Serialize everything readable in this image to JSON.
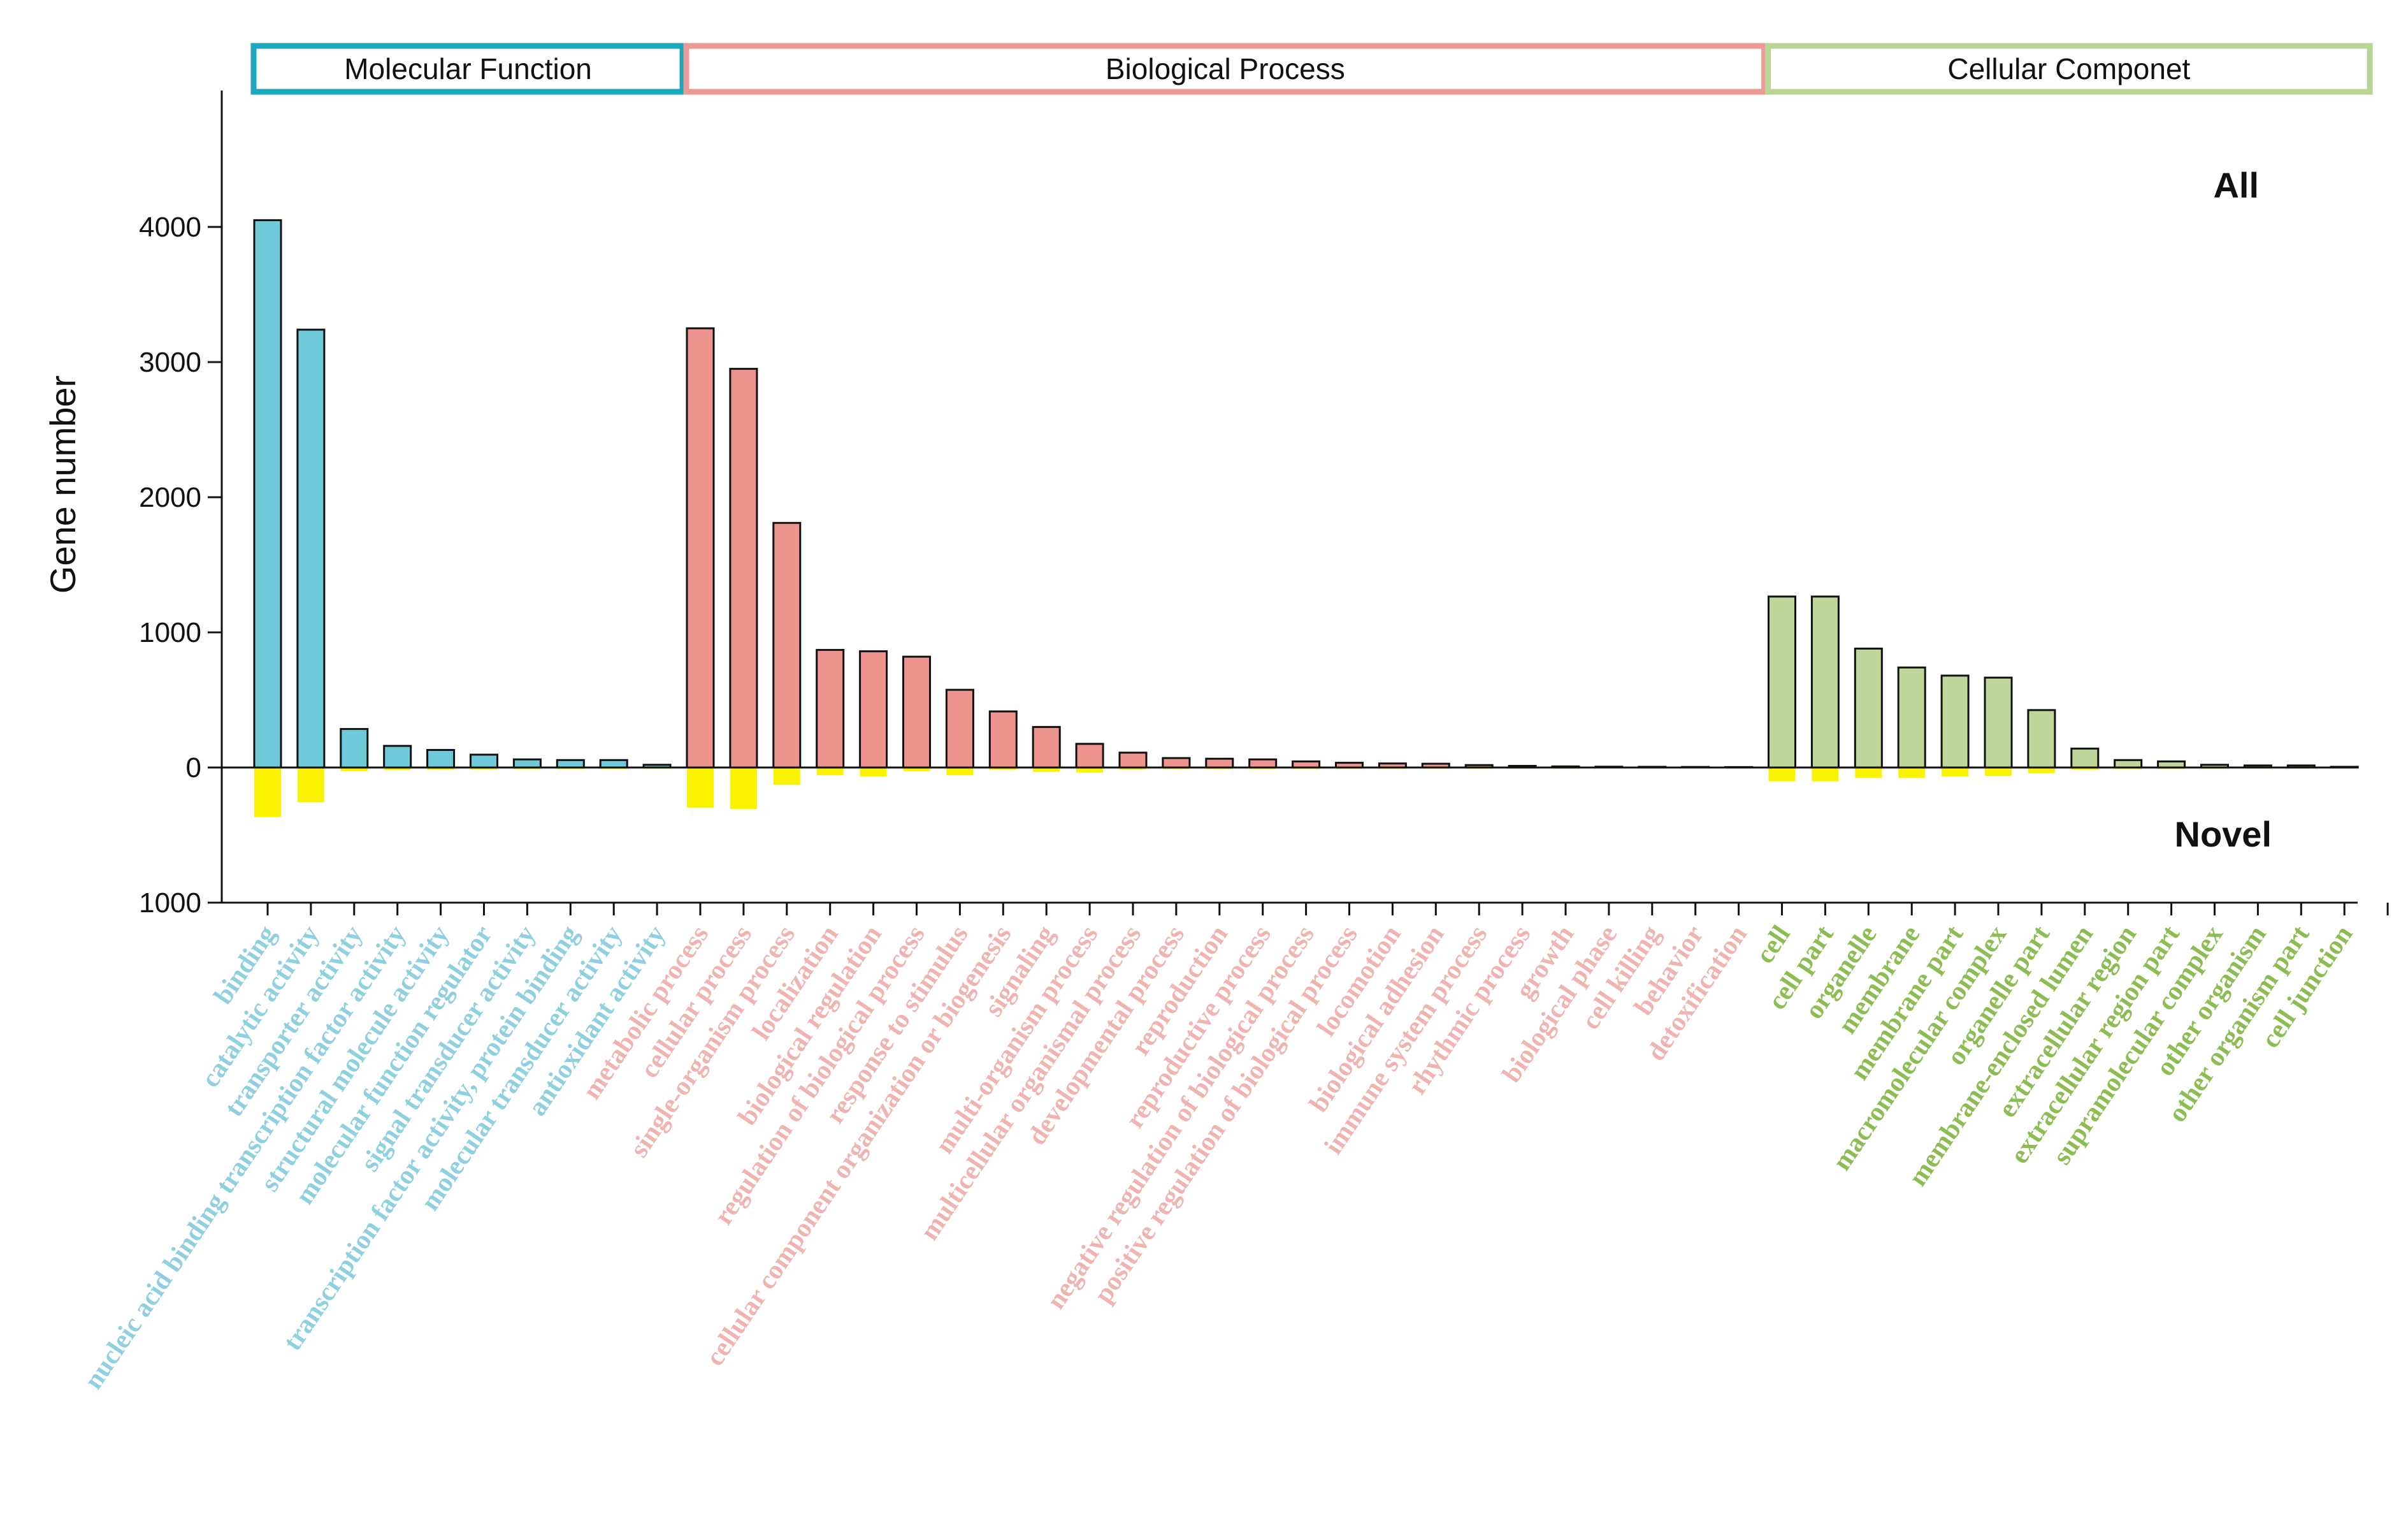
{
  "chart_data": {
    "type": "bar",
    "ylabel": "Gene number",
    "ylim_top": [
      0,
      5000
    ],
    "ylim_bottom": [
      0,
      1000
    ],
    "yticks_top": [
      "0",
      "1000",
      "2000",
      "3000",
      "4000"
    ],
    "yticks_bottom": [
      "1000"
    ],
    "label_all": "All",
    "label_novel": "Novel",
    "colors": {
      "mf": "#6ecad9",
      "bp": "#ee948f",
      "cc": "#bfd69b",
      "novel": "#fbf200",
      "mf_label": "#8fd0e0",
      "bp_label": "#f0b4b0",
      "cc_label": "#8cbd52",
      "mf_box": "#1ba8be",
      "bp_box": "#ec9a96",
      "cc_box": "#b9d596"
    },
    "groups": [
      {
        "name": "Molecular Function",
        "key": "mf"
      },
      {
        "name": "Biological Process",
        "key": "bp"
      },
      {
        "name": "Cellular Componet",
        "key": "cc"
      }
    ],
    "categories": [
      {
        "label": "binding",
        "group": "mf",
        "all": 4050,
        "novel": 360
      },
      {
        "label": "catalytic activity",
        "group": "mf",
        "all": 3240,
        "novel": 250
      },
      {
        "label": "transporter activity",
        "group": "mf",
        "all": 285,
        "novel": 20
      },
      {
        "label": "nucleic acid binding transcription factor activity",
        "group": "mf",
        "all": 160,
        "novel": 12
      },
      {
        "label": "structural molecule activity",
        "group": "mf",
        "all": 130,
        "novel": 10
      },
      {
        "label": "molecular function regulator",
        "group": "mf",
        "all": 95,
        "novel": 8
      },
      {
        "label": "signal transducer activity",
        "group": "mf",
        "all": 60,
        "novel": 6
      },
      {
        "label": "transcription factor activity, protein binding",
        "group": "mf",
        "all": 55,
        "novel": 5
      },
      {
        "label": "molecular transducer activity",
        "group": "mf",
        "all": 55,
        "novel": 5
      },
      {
        "label": "antioxidant activity",
        "group": "mf",
        "all": 20,
        "novel": 2
      },
      {
        "label": "metabolic process",
        "group": "bp",
        "all": 3250,
        "novel": 290
      },
      {
        "label": "cellular process",
        "group": "bp",
        "all": 2950,
        "novel": 300
      },
      {
        "label": "single-organism process",
        "group": "bp",
        "all": 1810,
        "novel": 120
      },
      {
        "label": "localization",
        "group": "bp",
        "all": 870,
        "novel": 50
      },
      {
        "label": "biological regulation",
        "group": "bp",
        "all": 860,
        "novel": 60
      },
      {
        "label": "regulation of biological process",
        "group": "bp",
        "all": 820,
        "novel": 20
      },
      {
        "label": "response to stimulus",
        "group": "bp",
        "all": 575,
        "novel": 50
      },
      {
        "label": "cellular component organization or biogenesis",
        "group": "bp",
        "all": 415,
        "novel": 10
      },
      {
        "label": "signaling",
        "group": "bp",
        "all": 300,
        "novel": 25
      },
      {
        "label": "multi-organism process",
        "group": "bp",
        "all": 175,
        "novel": 30
      },
      {
        "label": "multicellular organismal process",
        "group": "bp",
        "all": 110,
        "novel": 8
      },
      {
        "label": "developmental process",
        "group": "bp",
        "all": 70,
        "novel": 5
      },
      {
        "label": "reproduction",
        "group": "bp",
        "all": 65,
        "novel": 5
      },
      {
        "label": "reproductive process",
        "group": "bp",
        "all": 60,
        "novel": 5
      },
      {
        "label": "negative regulation of biological process",
        "group": "bp",
        "all": 45,
        "novel": 4
      },
      {
        "label": "positive regulation of biological process",
        "group": "bp",
        "all": 35,
        "novel": 3
      },
      {
        "label": "locomotion",
        "group": "bp",
        "all": 30,
        "novel": 3
      },
      {
        "label": "biological adhesion",
        "group": "bp",
        "all": 28,
        "novel": 2
      },
      {
        "label": "immune system process",
        "group": "bp",
        "all": 18,
        "novel": 2
      },
      {
        "label": "rhythmic process",
        "group": "bp",
        "all": 12,
        "novel": 1
      },
      {
        "label": "growth",
        "group": "bp",
        "all": 8,
        "novel": 1
      },
      {
        "label": "biological phase",
        "group": "bp",
        "all": 6,
        "novel": 0
      },
      {
        "label": "cell killing",
        "group": "bp",
        "all": 5,
        "novel": 0
      },
      {
        "label": "behavior",
        "group": "bp",
        "all": 4,
        "novel": 0
      },
      {
        "label": "detoxification",
        "group": "bp",
        "all": 3,
        "novel": 0
      },
      {
        "label": "cell",
        "group": "cc",
        "all": 1265,
        "novel": 95
      },
      {
        "label": "cell part",
        "group": "cc",
        "all": 1265,
        "novel": 95
      },
      {
        "label": "organelle",
        "group": "cc",
        "all": 880,
        "novel": 70
      },
      {
        "label": "membrane",
        "group": "cc",
        "all": 740,
        "novel": 70
      },
      {
        "label": "membrane part",
        "group": "cc",
        "all": 680,
        "novel": 60
      },
      {
        "label": "macromolecular complex",
        "group": "cc",
        "all": 665,
        "novel": 55
      },
      {
        "label": "organelle part",
        "group": "cc",
        "all": 425,
        "novel": 35
      },
      {
        "label": "membrane-enclosed lumen",
        "group": "cc",
        "all": 140,
        "novel": 10
      },
      {
        "label": "extracellular region",
        "group": "cc",
        "all": 55,
        "novel": 5
      },
      {
        "label": "extracellular region part",
        "group": "cc",
        "all": 45,
        "novel": 4
      },
      {
        "label": "supramolecular complex",
        "group": "cc",
        "all": 20,
        "novel": 2
      },
      {
        "label": "other organism",
        "group": "cc",
        "all": 15,
        "novel": 1
      },
      {
        "label": "other organism part",
        "group": "cc",
        "all": 15,
        "novel": 1
      },
      {
        "label": "cell junction",
        "group": "cc",
        "all": 5,
        "novel": 0
      }
    ]
  }
}
